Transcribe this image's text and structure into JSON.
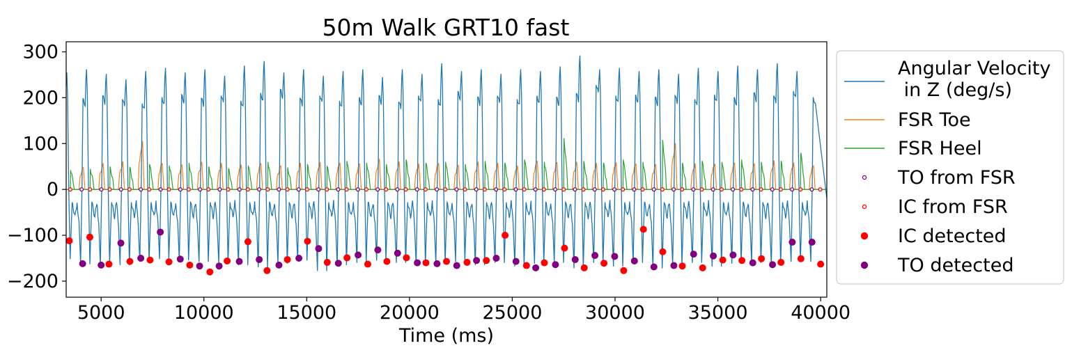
{
  "chart_data": {
    "type": "line",
    "title": "50m Walk GRT10 fast",
    "xlabel": "Time (ms)",
    "ylabel": "",
    "xlim": [
      3300,
      40300
    ],
    "ylim": [
      -235,
      322
    ],
    "xticks": [
      5000,
      10000,
      15000,
      20000,
      25000,
      30000,
      35000,
      40000
    ],
    "xtick_labels": [
      "5000",
      "10000",
      "15000",
      "20000",
      "25000",
      "30000",
      "35000",
      "40000"
    ],
    "yticks": [
      300,
      200,
      100,
      0,
      -100,
      -200
    ],
    "ytick_labels": [
      "300",
      "200",
      "100",
      "0",
      "−100",
      "−200"
    ],
    "legend_position": "outside-right",
    "series_style": {
      "angular_velocity": "#1f77b4",
      "fsr_toe": "#ff7f0e",
      "fsr_heel": "#2ca02c",
      "ic": "#ff0000",
      "to": "#800080"
    },
    "cycle_start": 3330,
    "cycle_period_ms": 960,
    "series": [
      {
        "key": "angular_velocity",
        "name": "Angular Velocity\n in Z (deg/s)",
        "kind": "line",
        "peak_values": [
          255,
          262,
          252,
          240,
          258,
          265,
          255,
          262,
          248,
          270,
          280,
          255,
          262,
          248,
          258,
          262,
          245,
          262,
          252,
          275,
          258,
          262,
          252,
          262,
          258,
          268,
          292,
          262,
          265,
          258,
          262,
          252,
          265,
          258,
          270,
          262,
          275,
          258
        ],
        "trough_values": [
          -152,
          -163,
          -165,
          -165,
          -158,
          -152,
          -155,
          -158,
          -160,
          -165,
          -170,
          -162,
          -155,
          -178,
          -165,
          -160,
          -155,
          -160,
          -165,
          -162,
          -158,
          -165,
          -160,
          -168,
          -162,
          -160,
          -172,
          -160,
          -168,
          -160,
          -172,
          -165,
          -160,
          -168,
          -162,
          -160,
          -165,
          -158
        ]
      },
      {
        "key": "fsr_toe",
        "name": "FSR Toe",
        "kind": "line",
        "peak_values": [
          50,
          55,
          58,
          105,
          60,
          55,
          58,
          55,
          55,
          60,
          52,
          55,
          58,
          60,
          58,
          65,
          58,
          55,
          60,
          55,
          58,
          55,
          52,
          65,
          60,
          58,
          55,
          60,
          58,
          55,
          98,
          55,
          58,
          60,
          55,
          60,
          58,
          55
        ]
      },
      {
        "key": "fsr_heel",
        "name": "FSR Heel",
        "kind": "line",
        "peak_values": [
          42,
          45,
          50,
          48,
          55,
          52,
          58,
          50,
          45,
          52,
          60,
          48,
          55,
          50,
          62,
          58,
          55,
          65,
          58,
          60,
          55,
          62,
          58,
          65,
          60,
          112,
          62,
          58,
          65,
          60,
          108,
          58,
          62,
          60,
          65,
          60,
          62,
          80
        ]
      },
      {
        "key": "to_fsr",
        "name": "TO from FSR",
        "kind": "scatter-open",
        "x": [
          4050,
          5010,
          5970,
          6930,
          7890,
          8850,
          9810,
          10770,
          11730,
          12690,
          13650,
          14610,
          15570,
          16530,
          17490,
          18450,
          19410,
          20370,
          21330,
          22290,
          23250,
          24210,
          25170,
          26130,
          27090,
          28050,
          29010,
          29970,
          30930,
          31890,
          32850,
          33810,
          34770,
          35730,
          36690,
          37650,
          38610,
          39570
        ],
        "y": [
          0,
          0,
          0,
          0,
          0,
          0,
          0,
          0,
          0,
          0,
          0,
          0,
          0,
          0,
          0,
          0,
          0,
          0,
          0,
          0,
          0,
          0,
          0,
          0,
          0,
          0,
          0,
          0,
          0,
          0,
          0,
          0,
          0,
          0,
          0,
          0,
          0,
          0
        ]
      },
      {
        "key": "ic_fsr",
        "name": "IC from FSR",
        "kind": "scatter-open",
        "x": [
          3500,
          4460,
          5420,
          6380,
          7340,
          8300,
          9260,
          10220,
          11180,
          12140,
          13100,
          14060,
          15020,
          15980,
          16940,
          17900,
          18860,
          19820,
          20780,
          21740,
          22700,
          23660,
          24620,
          25580,
          26540,
          27500,
          28460,
          29420,
          30380,
          31340,
          32300,
          33260,
          34220,
          35180,
          36140,
          37100,
          38060,
          39020,
          39980
        ],
        "y": [
          0,
          0,
          0,
          0,
          0,
          0,
          0,
          0,
          0,
          0,
          0,
          0,
          0,
          0,
          0,
          0,
          0,
          0,
          0,
          0,
          0,
          0,
          0,
          0,
          0,
          0,
          0,
          0,
          0,
          0,
          0,
          0,
          0,
          0,
          0,
          0,
          0,
          0,
          0
        ]
      },
      {
        "key": "ic_detected",
        "name": "IC detected",
        "kind": "scatter-filled",
        "x": [
          3450,
          4450,
          5380,
          6400,
          7380,
          8300,
          9310,
          10290,
          11130,
          12140,
          13070,
          14060,
          15040,
          16000,
          16960,
          17970,
          18900,
          19850,
          20800,
          21800,
          22800,
          23740,
          24650,
          25690,
          26560,
          27540,
          28500,
          29460,
          30420,
          31380,
          32320,
          33270,
          34260,
          35240,
          36170,
          37120,
          38070,
          39040,
          40000
        ],
        "y": [
          -112,
          -104,
          -163,
          -157,
          -154,
          -158,
          -165,
          -180,
          -156,
          -114,
          -177,
          -153,
          -113,
          -159,
          -149,
          -163,
          -157,
          -149,
          -160,
          -157,
          -159,
          -155,
          -100,
          -166,
          -160,
          -128,
          -171,
          -161,
          -177,
          -87,
          -136,
          -167,
          -171,
          -154,
          -155,
          -151,
          -159,
          -151,
          -163
        ]
      },
      {
        "key": "to_detected",
        "name": "TO detected",
        "kind": "scatter-filled",
        "x": [
          4100,
          5000,
          5960,
          6930,
          7880,
          8850,
          9790,
          10740,
          11720,
          12690,
          13650,
          14620,
          15580,
          16540,
          17500,
          18460,
          19420,
          20380,
          21340,
          22300,
          23260,
          24220,
          25180,
          26140,
          27100,
          28060,
          29020,
          29980,
          30940,
          31890,
          32860,
          33820,
          34780,
          35740,
          36700,
          37660,
          38620,
          39580
        ],
        "y": [
          -162,
          -165,
          -117,
          -150,
          -93,
          -152,
          -167,
          -167,
          -157,
          -153,
          -165,
          -150,
          -129,
          -161,
          -143,
          -132,
          -139,
          -160,
          -162,
          -166,
          -155,
          -150,
          -157,
          -171,
          -164,
          -153,
          -144,
          -146,
          -156,
          -169,
          -166,
          -141,
          -145,
          -143,
          -160,
          -164,
          -115,
          -115
        ]
      }
    ]
  }
}
